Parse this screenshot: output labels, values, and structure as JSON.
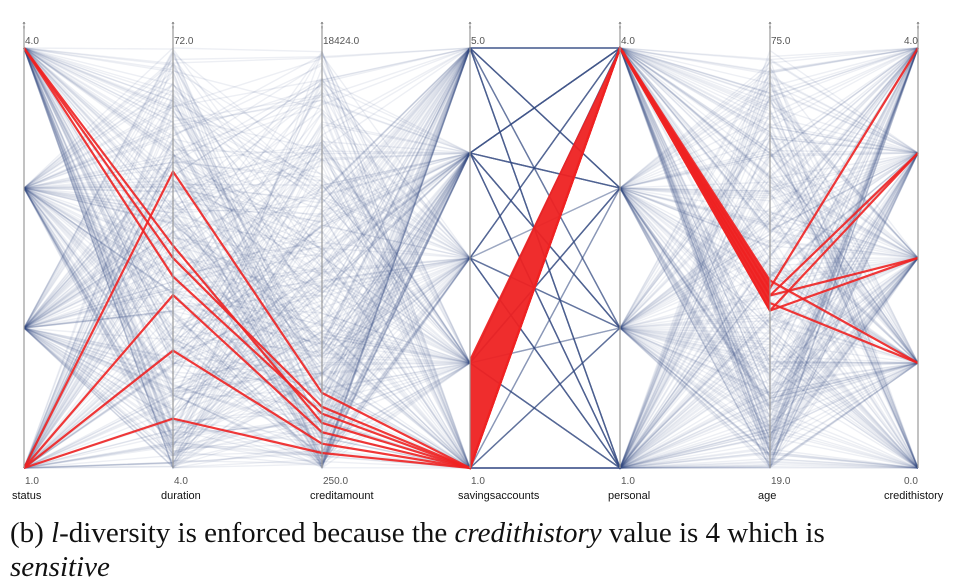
{
  "chart_data": {
    "type": "parallel-coordinates",
    "axes": [
      {
        "name": "status",
        "max": "4.0",
        "min": "1.0"
      },
      {
        "name": "duration",
        "max": "72.0",
        "min": "4.0"
      },
      {
        "name": "creditamount",
        "max": "18424.0",
        "min": "250.0"
      },
      {
        "name": "savingsaccounts",
        "max": "5.0",
        "min": "1.0"
      },
      {
        "name": "personal",
        "max": "4.0",
        "min": "1.0"
      },
      {
        "name": "age",
        "max": "75.0",
        "min": "19.0"
      },
      {
        "name": "credithistory",
        "max": "4.0",
        "min": "0.0"
      }
    ],
    "highlighted_records": [
      [
        4.0,
        40,
        2200,
        1.0,
        4.0,
        43,
        4.0
      ],
      [
        1.0,
        52,
        3500,
        1.0,
        4.0,
        42,
        2.0
      ],
      [
        1.0,
        32,
        1800,
        1.0,
        4.0,
        41,
        1.0
      ],
      [
        1.0,
        23,
        1300,
        1.0,
        4.0,
        42,
        3.0
      ],
      [
        1.0,
        12,
        900,
        1.0,
        4.0,
        40,
        2.0
      ],
      [
        4.0,
        35,
        2600,
        1.0,
        4.0,
        44,
        1.0
      ],
      [
        4.0,
        38,
        2900,
        1.0,
        4.0,
        40,
        3.0
      ]
    ],
    "highlight_color": "#ee2222",
    "background_color": "#3a4a8a"
  },
  "caption": {
    "label": "(b) ",
    "var": "l",
    "text1": "-diversity is enforced because the ",
    "field": "credithistory",
    "text2": " value is 4 which is",
    "text3": "sensitive"
  }
}
